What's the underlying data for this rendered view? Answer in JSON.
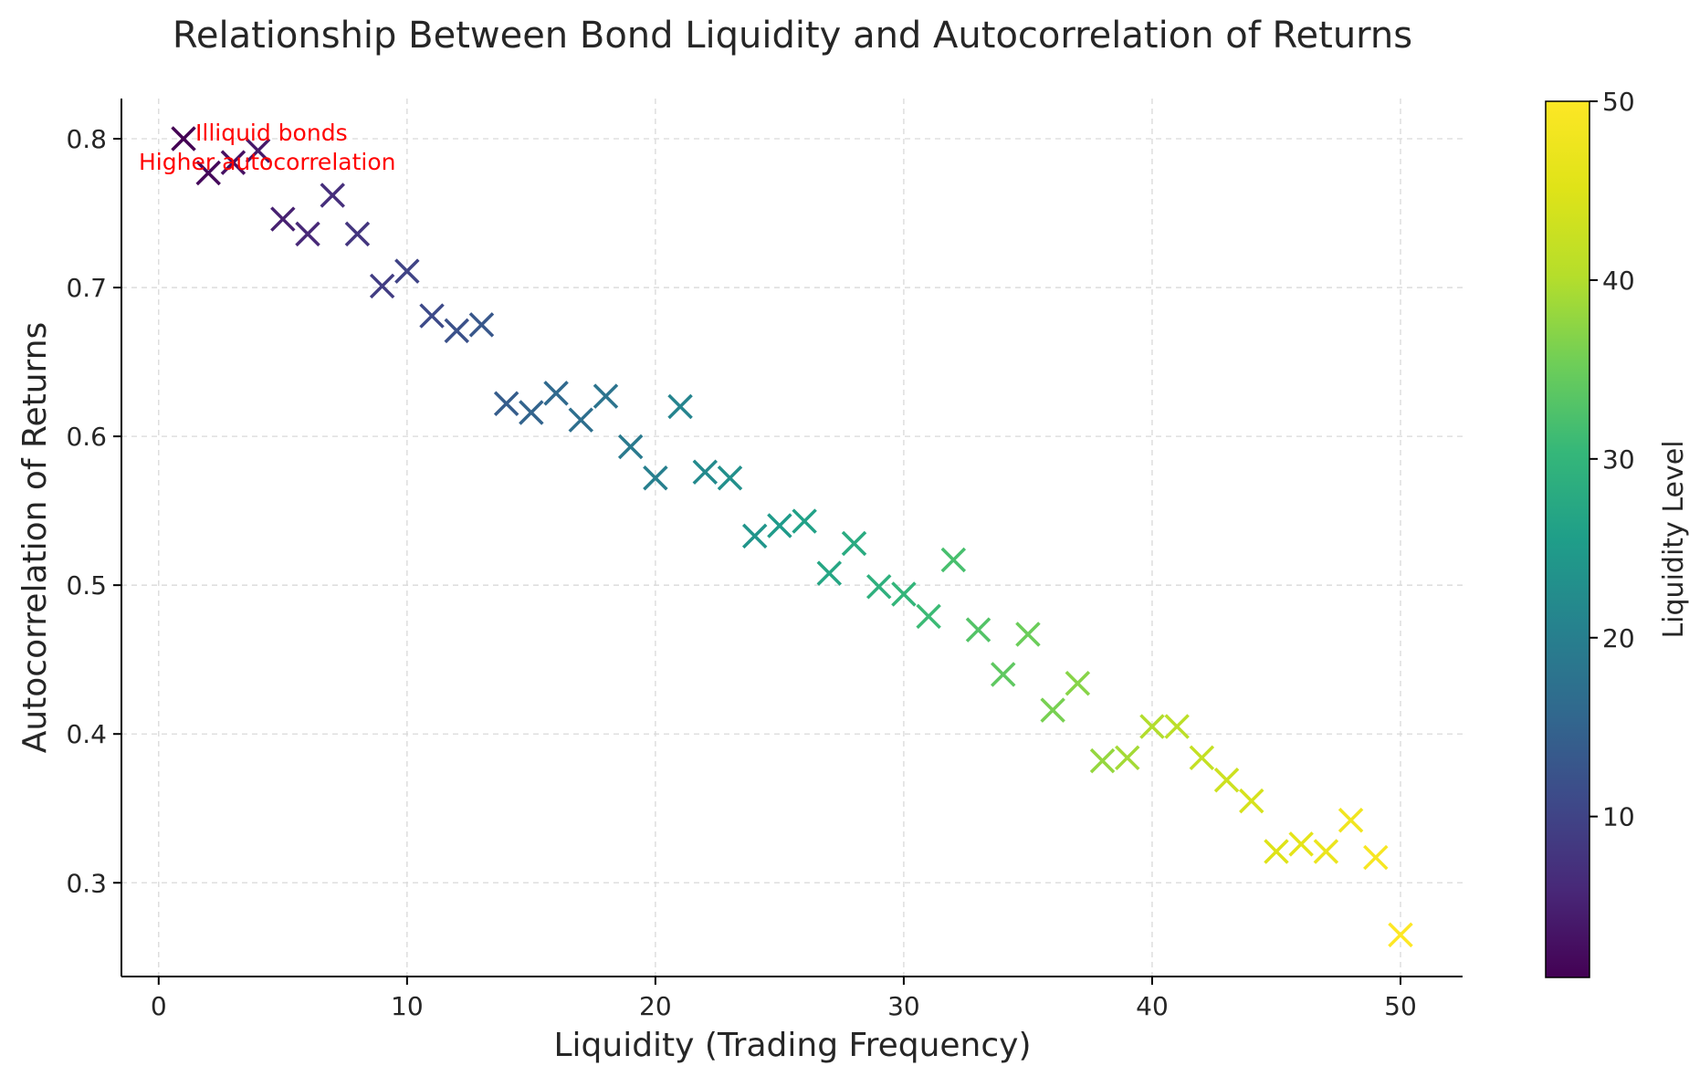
{
  "chart_data": {
    "type": "scatter",
    "title": "Relationship Between Bond Liquidity and Autocorrelation of Returns",
    "xlabel": "Liquidity (Trading Frequency)",
    "ylabel": "Autocorrelation of Returns",
    "xlim": [
      -1.5,
      52.5
    ],
    "ylim": [
      0.237,
      0.827
    ],
    "xticks": [
      0,
      10,
      20,
      30,
      40,
      50
    ],
    "yticks": [
      0.3,
      0.4,
      0.5,
      0.6,
      0.7,
      0.8
    ],
    "ytick_labels": [
      "0.3",
      "0.4",
      "0.5",
      "0.6",
      "0.7",
      "0.8"
    ],
    "grid": true,
    "marker": "x",
    "colormap": "viridis",
    "colorbar": {
      "label": "Liquidity Level",
      "range": [
        1,
        50
      ],
      "ticks": [
        10,
        20,
        30,
        40,
        50
      ]
    },
    "annotations": [
      "Illiquid bonds",
      "Higher autocorrelation"
    ],
    "annotation_color": "#ff0000",
    "x": [
      1,
      2,
      3,
      4,
      5,
      6,
      7,
      8,
      9,
      10,
      11,
      12,
      13,
      14,
      15,
      16,
      17,
      18,
      19,
      20,
      21,
      22,
      23,
      24,
      25,
      26,
      27,
      28,
      29,
      30,
      31,
      32,
      33,
      34,
      35,
      36,
      37,
      38,
      39,
      40,
      41,
      42,
      43,
      44,
      45,
      46,
      47,
      48,
      49,
      50
    ],
    "y": [
      0.8,
      0.777,
      0.784,
      0.792,
      0.746,
      0.736,
      0.762,
      0.736,
      0.701,
      0.711,
      0.681,
      0.671,
      0.675,
      0.622,
      0.616,
      0.629,
      0.611,
      0.627,
      0.593,
      0.572,
      0.62,
      0.576,
      0.572,
      0.533,
      0.54,
      0.543,
      0.508,
      0.528,
      0.499,
      0.494,
      0.479,
      0.517,
      0.47,
      0.44,
      0.467,
      0.416,
      0.434,
      0.382,
      0.384,
      0.405,
      0.405,
      0.384,
      0.369,
      0.355,
      0.321,
      0.326,
      0.321,
      0.342,
      0.317,
      0.265
    ]
  }
}
